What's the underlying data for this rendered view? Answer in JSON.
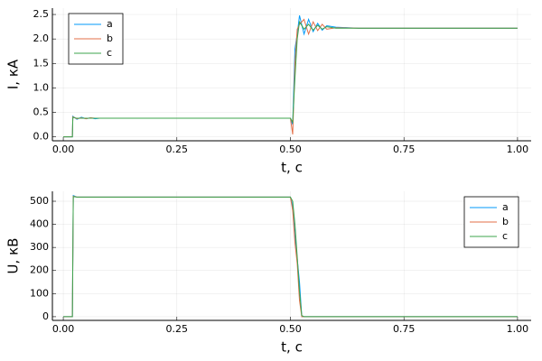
{
  "chart_data": [
    {
      "type": "line",
      "x_label": "t, c",
      "y_label": "I, кА",
      "x": [
        0,
        0.02,
        0.021,
        0.03,
        0.04,
        0.05,
        0.06,
        0.07,
        0.08,
        0.1,
        0.3,
        0.5,
        0.505,
        0.51,
        0.515,
        0.52,
        0.53,
        0.54,
        0.55,
        0.56,
        0.57,
        0.58,
        0.6,
        0.65,
        0.7,
        1.0
      ],
      "series": [
        {
          "name": "a",
          "color": "#009afa",
          "values": [
            0,
            0,
            0.42,
            0.36,
            0.4,
            0.37,
            0.39,
            0.37,
            0.38,
            0.38,
            0.38,
            0.38,
            0.25,
            1.8,
            2.1,
            2.48,
            2.1,
            2.4,
            2.15,
            2.32,
            2.18,
            2.27,
            2.24,
            2.22,
            2.22,
            2.22
          ]
        },
        {
          "name": "b",
          "color": "#e36f47",
          "values": [
            0,
            0,
            0.41,
            0.37,
            0.39,
            0.37,
            0.39,
            0.38,
            0.38,
            0.38,
            0.38,
            0.38,
            0.05,
            1.5,
            2.2,
            2.3,
            2.4,
            2.1,
            2.35,
            2.17,
            2.3,
            2.2,
            2.23,
            2.22,
            2.22,
            2.22
          ]
        },
        {
          "name": "c",
          "color": "#3ea44e",
          "values": [
            0,
            0,
            0.4,
            0.38,
            0.38,
            0.38,
            0.38,
            0.38,
            0.38,
            0.38,
            0.38,
            0.38,
            0.3,
            1.2,
            2.0,
            2.35,
            2.2,
            2.3,
            2.18,
            2.28,
            2.2,
            2.25,
            2.22,
            2.22,
            2.22,
            2.22
          ]
        }
      ],
      "xlim": [
        -0.024,
        1.03
      ],
      "xticks": [
        {
          "value": 0,
          "label": "0.00"
        },
        0.25,
        {
          "value": 0.5,
          "label": "0.50"
        },
        0.75,
        {
          "value": 1,
          "label": "1.00"
        }
      ],
      "ylim": [
        -0.08,
        2.63
      ],
      "yticks": [
        {
          "value": 0,
          "label": "0.0"
        },
        0.5,
        {
          "value": 1,
          "label": "1.0"
        },
        1.5,
        {
          "value": 2,
          "label": "2.0"
        },
        2.5
      ],
      "grid": true,
      "legend": "top-left"
    },
    {
      "type": "line",
      "x_label": "t, c",
      "y_label": "U, кВ",
      "x": [
        0,
        0.02,
        0.022,
        0.03,
        0.1,
        0.5,
        0.505,
        0.51,
        0.515,
        0.52,
        0.525,
        0.53,
        1.0
      ],
      "series": [
        {
          "name": "a",
          "color": "#009afa",
          "values": [
            0,
            0,
            525,
            518,
            518,
            518,
            480,
            350,
            250,
            150,
            0,
            0,
            0
          ]
        },
        {
          "name": "b",
          "color": "#e36f47",
          "values": [
            0,
            0,
            522,
            518,
            518,
            518,
            460,
            320,
            230,
            70,
            0,
            0,
            0
          ]
        },
        {
          "name": "c",
          "color": "#3ea44e",
          "values": [
            0,
            0,
            520,
            518,
            518,
            518,
            500,
            400,
            260,
            110,
            5,
            0,
            0
          ]
        }
      ],
      "xlim": [
        -0.024,
        1.03
      ],
      "xticks": [
        {
          "value": 0,
          "label": "0.00"
        },
        0.25,
        {
          "value": 0.5,
          "label": "0.50"
        },
        0.75,
        {
          "value": 1,
          "label": "1.00"
        }
      ],
      "ylim": [
        -16,
        543
      ],
      "yticks": [
        0,
        100,
        200,
        300,
        400,
        500
      ],
      "grid": true,
      "legend": "top-right"
    }
  ]
}
